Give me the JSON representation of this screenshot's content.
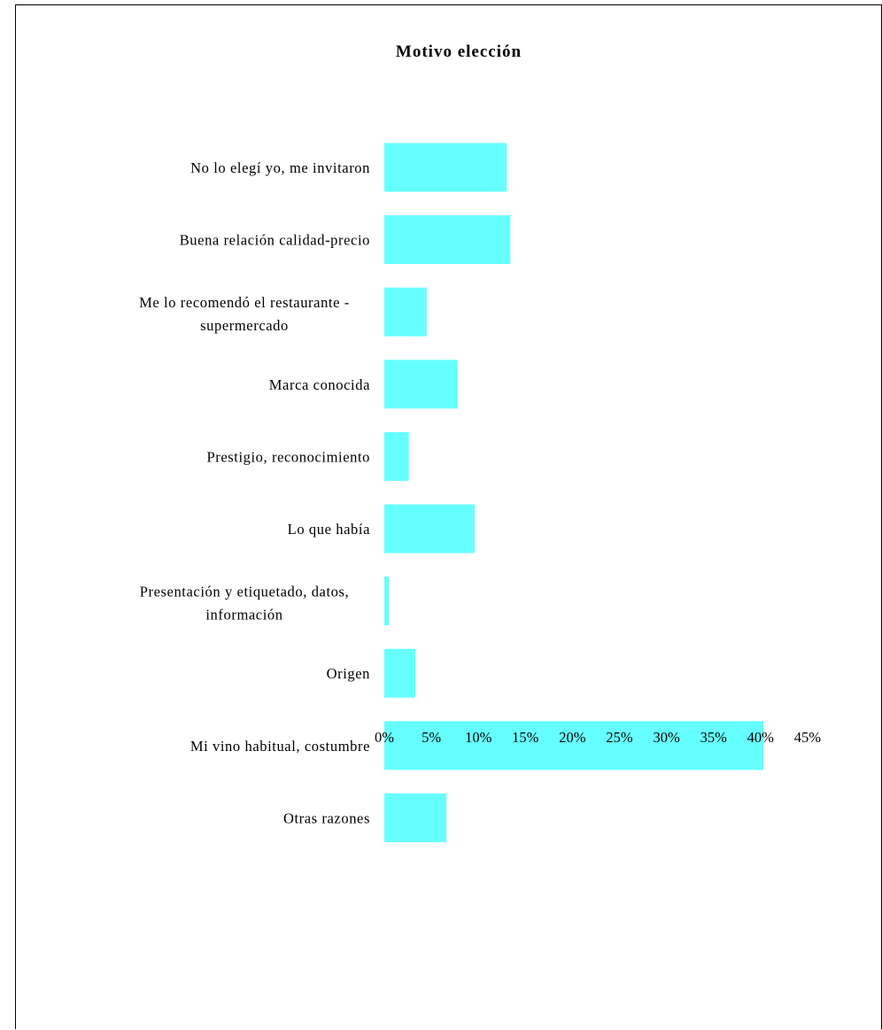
{
  "chart_data": {
    "type": "bar",
    "orientation": "horizontal",
    "title": "Motivo elección",
    "xlabel": "",
    "ylabel": "",
    "categories": [
      "No lo elegí yo, me invitaron",
      "Buena relación calidad-precio",
      "Me lo recomendó el restaurante - supermercado",
      "Marca conocida",
      "Prestigio, reconocimiento",
      "Lo que había",
      "Presentación y etiquetado, datos, información",
      "Origen",
      "Mi vino habitual, costumbre",
      "Otras razones"
    ],
    "category_lines": [
      [
        "No lo elegí yo, me invitaron"
      ],
      [
        "Buena relación calidad-precio"
      ],
      [
        "Me lo recomendó el restaurante -",
        "supermercado"
      ],
      [
        "Marca conocida"
      ],
      [
        "Prestigio, reconocimiento"
      ],
      [
        "Lo que había"
      ],
      [
        "Presentación y etiquetado, datos,",
        "información"
      ],
      [
        "Origen"
      ],
      [
        "Mi vino habitual, costumbre"
      ],
      [
        "Otras razones"
      ]
    ],
    "values": [
      13.0,
      13.4,
      4.5,
      7.8,
      2.6,
      9.6,
      0.5,
      3.3,
      40.3,
      6.6
    ],
    "xlim": [
      0,
      45
    ],
    "xticks": [
      "0%",
      "5%",
      "10%",
      "15%",
      "20%",
      "25%",
      "30%",
      "35%",
      "40%",
      "45%"
    ],
    "grid": false,
    "legend": "none",
    "bar_color": "#66FFFF"
  }
}
